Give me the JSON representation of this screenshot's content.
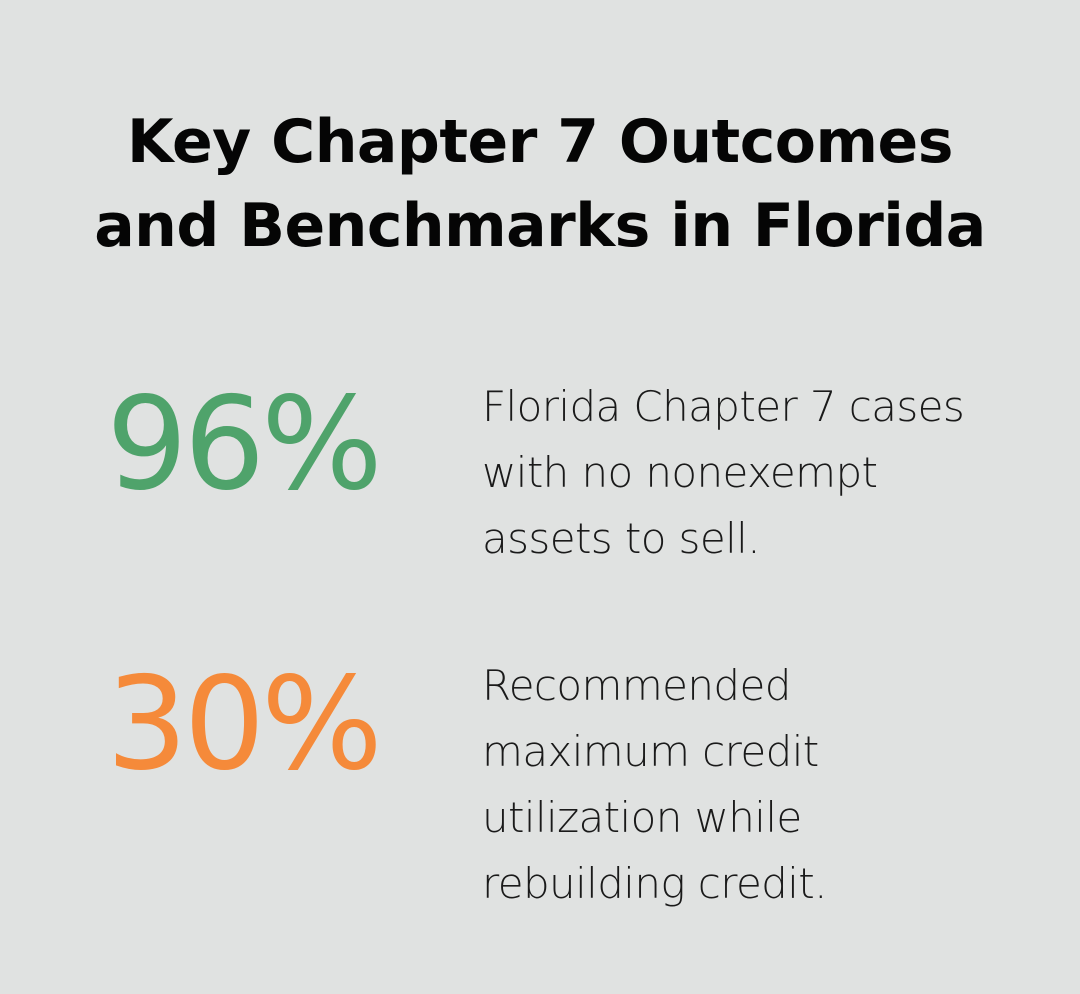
{
  "title": {
    "line1": "Key Chapter 7 Outcomes",
    "line2": "and Benchmarks in Florida"
  },
  "stats": [
    {
      "value": "96%",
      "color": "#4fa36b",
      "lines": [
        "Florida Chapter 7 cases",
        "with no nonexempt",
        "assets to sell."
      ]
    },
    {
      "value": "30%",
      "color": "#f58a3a",
      "lines": [
        "Recommended",
        "maximum credit",
        "utilization while",
        "rebuilding credit."
      ]
    }
  ]
}
